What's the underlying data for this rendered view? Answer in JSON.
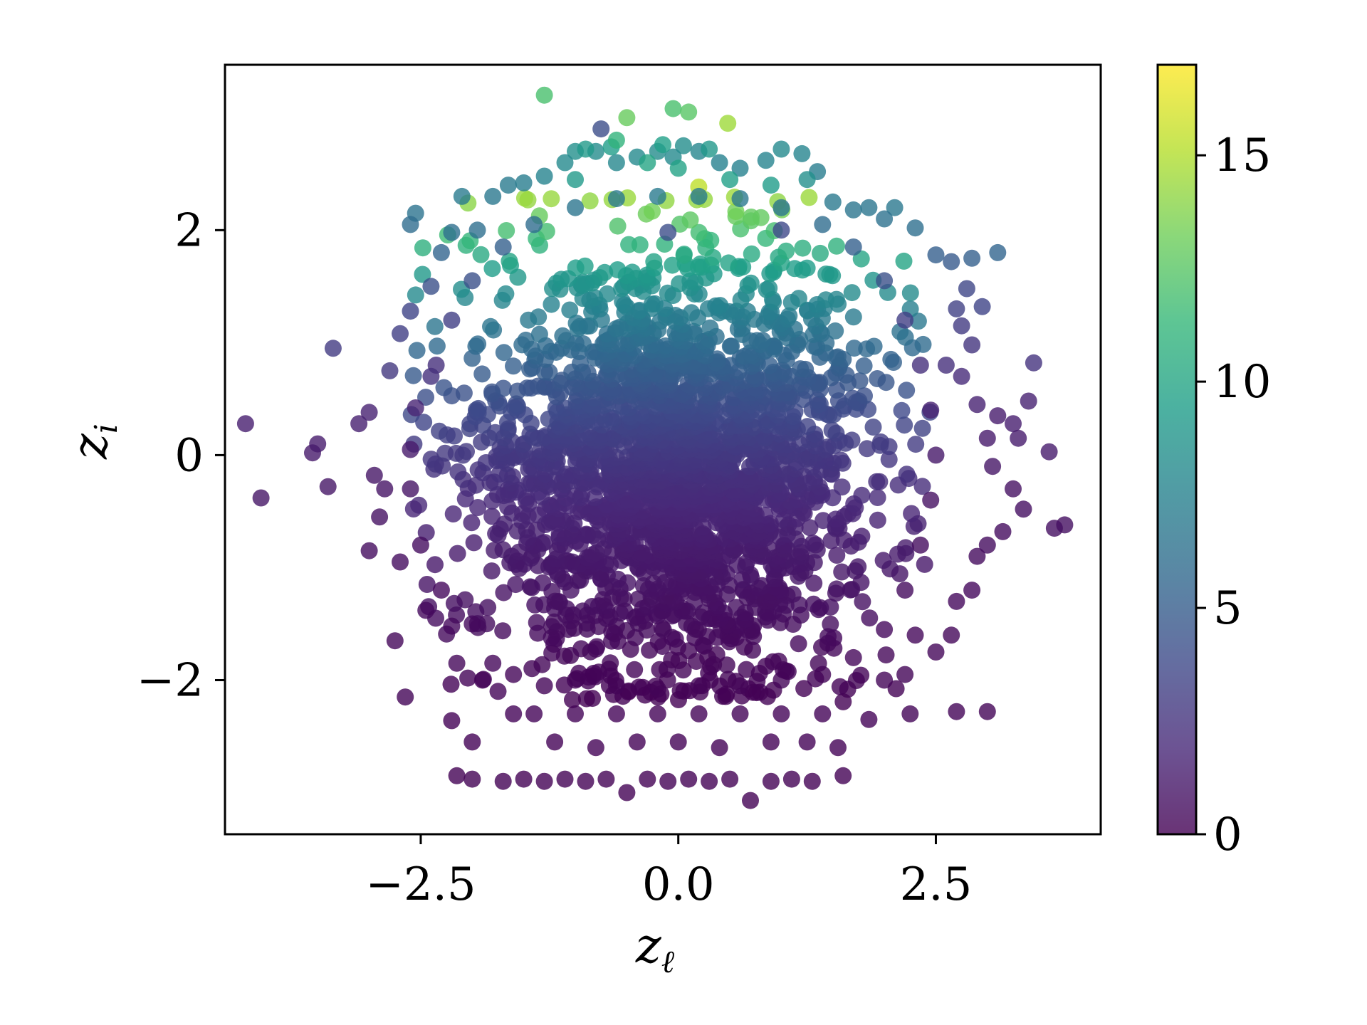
{
  "chart_data": {
    "type": "scatter",
    "title": "",
    "xlabel": "z",
    "xlabel_sub": "ℓ",
    "ylabel": "z",
    "ylabel_sub": "i",
    "xlim": [
      -4.4,
      4.1
    ],
    "ylim": [
      -3.37,
      3.47
    ],
    "xticks": [
      -2.5,
      0.0,
      2.5
    ],
    "xtick_labels": [
      "−2.5",
      "0.0",
      "2.5"
    ],
    "yticks": [
      -2,
      0,
      2
    ],
    "ytick_labels": [
      "−2",
      "0",
      "2"
    ],
    "grid": false,
    "legend": "none",
    "colormap": "viridis",
    "color_range": [
      0,
      17
    ],
    "colorbar_ticks": [
      0,
      5,
      10,
      15
    ],
    "colorbar_tick_labels": [
      "0",
      "5",
      "10",
      "15"
    ],
    "colors": {
      "viridis": [
        "#440154",
        "#482878",
        "#3e4989",
        "#31688e",
        "#26828e",
        "#1f9e89",
        "#35b779",
        "#6ece58",
        "#b5de2b",
        "#fde725"
      ]
    },
    "marker_alpha": 0.8,
    "points": [
      [
        -4.2,
        0.28,
        1.4
      ],
      [
        -3.55,
        0.02,
        1.2
      ],
      [
        -4.05,
        -0.38,
        1.0
      ],
      [
        -3.5,
        0.1,
        1.3
      ],
      [
        -3.4,
        -0.28,
        1.0
      ],
      [
        -3.35,
        0.95,
        3.0
      ],
      [
        -3.1,
        0.28,
        1.5
      ],
      [
        -3.0,
        0.38,
        1.6
      ],
      [
        -2.95,
        -0.18,
        1.0
      ],
      [
        -2.85,
        -0.3,
        0.9
      ],
      [
        -3.0,
        -0.85,
        0.6
      ],
      [
        -2.9,
        -0.55,
        0.8
      ],
      [
        -2.7,
        1.08,
        3.2
      ],
      [
        -2.8,
        0.75,
        2.8
      ],
      [
        -2.6,
        1.28,
        3.5
      ],
      [
        -2.7,
        -0.95,
        0.6
      ],
      [
        -2.75,
        -1.65,
        0.3
      ],
      [
        -2.65,
        -2.15,
        0.2
      ],
      [
        -2.55,
        2.15,
        6.5
      ],
      [
        -2.6,
        2.05,
        6.0
      ],
      [
        -2.4,
        1.5,
        4.2
      ],
      [
        -2.3,
        1.8,
        5.5
      ],
      [
        -2.2,
        1.98,
        6.2
      ],
      [
        -2.1,
        2.3,
        7.0
      ],
      [
        -2.45,
        -1.38,
        0.4
      ],
      [
        -2.2,
        -1.52,
        0.4
      ],
      [
        -2.15,
        -1.85,
        0.3
      ],
      [
        -2.2,
        -2.36,
        0.1
      ],
      [
        -2.15,
        -2.85,
        0.05
      ],
      [
        -2.0,
        -2.88,
        0.05
      ],
      [
        -2.0,
        -2.55,
        0.1
      ],
      [
        -1.7,
        -2.9,
        0.05
      ],
      [
        -1.5,
        -2.88,
        0.05
      ],
      [
        -1.3,
        -2.9,
        0.05
      ],
      [
        -1.1,
        -2.88,
        0.05
      ],
      [
        -0.9,
        -2.9,
        0.05
      ],
      [
        -0.7,
        -2.88,
        0.05
      ],
      [
        -0.5,
        -3.0,
        0.05
      ],
      [
        -0.3,
        -2.88,
        0.05
      ],
      [
        -0.1,
        -2.9,
        0.05
      ],
      [
        0.1,
        -2.88,
        0.05
      ],
      [
        0.3,
        -2.9,
        0.05
      ],
      [
        0.5,
        -2.88,
        0.05
      ],
      [
        0.7,
        -3.07,
        0.05
      ],
      [
        0.9,
        -2.9,
        0.05
      ],
      [
        1.1,
        -2.88,
        0.05
      ],
      [
        1.3,
        -2.9,
        0.05
      ],
      [
        1.6,
        -2.85,
        0.05
      ],
      [
        -1.2,
        -2.55,
        0.1
      ],
      [
        -0.8,
        -2.6,
        0.1
      ],
      [
        -0.4,
        -2.55,
        0.1
      ],
      [
        0.0,
        -2.55,
        0.1
      ],
      [
        0.4,
        -2.6,
        0.1
      ],
      [
        0.9,
        -2.55,
        0.1
      ],
      [
        1.25,
        -2.55,
        0.1
      ],
      [
        1.55,
        -2.6,
        0.1
      ],
      [
        -1.6,
        -2.3,
        0.15
      ],
      [
        -1.4,
        -2.3,
        0.15
      ],
      [
        -1.0,
        -2.3,
        0.15
      ],
      [
        -0.6,
        -2.3,
        0.15
      ],
      [
        -0.2,
        -2.3,
        0.15
      ],
      [
        0.2,
        -2.3,
        0.15
      ],
      [
        0.6,
        -2.3,
        0.15
      ],
      [
        1.0,
        -2.3,
        0.15
      ],
      [
        1.4,
        -2.3,
        0.15
      ],
      [
        1.85,
        -2.35,
        0.15
      ],
      [
        2.25,
        -2.3,
        0.2
      ],
      [
        2.7,
        -2.28,
        0.2
      ],
      [
        3.0,
        -2.28,
        0.2
      ],
      [
        -1.9,
        -2.0,
        0.2
      ],
      [
        -1.75,
        -2.1,
        0.2
      ],
      [
        2.0,
        -2.0,
        0.2
      ],
      [
        2.2,
        -1.95,
        0.2
      ],
      [
        2.5,
        -1.75,
        0.3
      ],
      [
        2.3,
        -1.6,
        0.3
      ],
      [
        2.65,
        -1.6,
        0.3
      ],
      [
        2.7,
        -1.3,
        0.4
      ],
      [
        2.85,
        -1.2,
        0.4
      ],
      [
        2.9,
        -0.9,
        0.5
      ],
      [
        3.0,
        -0.8,
        0.6
      ],
      [
        3.15,
        -0.68,
        0.6
      ],
      [
        3.35,
        -0.48,
        0.7
      ],
      [
        3.25,
        -0.3,
        0.8
      ],
      [
        3.05,
        -0.1,
        1.0
      ],
      [
        3.0,
        0.15,
        1.2
      ],
      [
        3.1,
        0.35,
        1.3
      ],
      [
        3.25,
        0.28,
        1.4
      ],
      [
        3.4,
        0.48,
        1.6
      ],
      [
        3.3,
        0.15,
        1.3
      ],
      [
        3.6,
        0.03,
        1.3
      ],
      [
        3.45,
        0.82,
        2.5
      ],
      [
        3.65,
        -0.65,
        0.7
      ],
      [
        3.75,
        -0.62,
        0.7
      ],
      [
        2.9,
        0.45,
        1.6
      ],
      [
        2.75,
        0.7,
        2.0
      ],
      [
        2.85,
        0.98,
        2.6
      ],
      [
        2.6,
        0.8,
        2.3
      ],
      [
        2.75,
        1.15,
        3.0
      ],
      [
        2.7,
        1.3,
        3.3
      ],
      [
        2.8,
        1.48,
        3.6
      ],
      [
        2.95,
        1.32,
        3.5
      ],
      [
        2.65,
        1.72,
        4.8
      ],
      [
        2.85,
        1.75,
        5.2
      ],
      [
        3.1,
        1.8,
        5.5
      ],
      [
        2.5,
        1.78,
        5.1
      ],
      [
        2.3,
        2.02,
        6.2
      ],
      [
        2.1,
        2.2,
        6.8
      ],
      [
        2.0,
        2.1,
        6.4
      ],
      [
        1.85,
        2.2,
        6.7
      ],
      [
        1.7,
        2.18,
        6.6
      ],
      [
        1.5,
        2.25,
        6.9
      ],
      [
        1.35,
        2.52,
        7.2
      ],
      [
        1.2,
        2.68,
        7.7
      ],
      [
        1.0,
        2.72,
        8.0
      ],
      [
        0.85,
        2.62,
        7.6
      ],
      [
        0.6,
        2.55,
        7.5
      ],
      [
        0.4,
        2.6,
        7.5
      ],
      [
        0.2,
        2.7,
        7.8
      ],
      [
        0.05,
        2.75,
        8.3
      ],
      [
        -0.05,
        2.65,
        8.1
      ],
      [
        -0.2,
        2.7,
        8.2
      ],
      [
        -0.4,
        2.65,
        8.0
      ],
      [
        -0.6,
        2.6,
        7.9
      ],
      [
        -0.8,
        2.7,
        8.2
      ],
      [
        -1.0,
        2.7,
        8.5
      ],
      [
        -1.1,
        2.6,
        8.0
      ],
      [
        -1.3,
        2.48,
        7.6
      ],
      [
        -1.5,
        2.42,
        7.2
      ],
      [
        -1.65,
        2.4,
        7.0
      ],
      [
        -1.8,
        2.3,
        6.8
      ],
      [
        -1.95,
        2.0,
        6.2
      ],
      [
        -0.9,
        2.72,
        9.2
      ],
      [
        -0.65,
        2.74,
        9.4
      ],
      [
        -0.15,
        2.76,
        9.6
      ],
      [
        0.3,
        2.72,
        9.0
      ],
      [
        -0.75,
        2.9,
        4.0
      ],
      [
        -0.5,
        3.0,
        13.0
      ],
      [
        -0.05,
        3.08,
        12.0
      ],
      [
        0.1,
        3.05,
        12.5
      ],
      [
        0.48,
        2.95,
        14.5
      ],
      [
        -1.3,
        3.2,
        12.0
      ],
      [
        -0.6,
        2.8,
        11.0
      ],
      [
        -0.3,
        2.6,
        10.0
      ],
      [
        0.0,
        2.55,
        9.8
      ],
      [
        0.5,
        2.45,
        9.6
      ],
      [
        -1.0,
        2.45,
        9.2
      ],
      [
        0.9,
        2.4,
        9.3
      ],
      [
        1.25,
        2.45,
        8.5
      ],
      [
        -0.1,
        1.98,
        4.0
      ],
      [
        1.0,
        2.0,
        3.8
      ],
      [
        -2.4,
        0.7,
        2.4
      ],
      [
        -2.55,
        0.42,
        1.7
      ],
      [
        -2.6,
        0.05,
        1.2
      ],
      [
        -2.6,
        -0.3,
        0.9
      ],
      [
        -2.5,
        -0.8,
        0.6
      ],
      [
        -2.3,
        -1.2,
        0.4
      ],
      [
        -2.0,
        -1.5,
        0.4
      ],
      [
        -1.8,
        -1.85,
        0.3
      ],
      [
        -1.6,
        -1.95,
        0.2
      ],
      [
        -1.3,
        -2.05,
        0.2
      ],
      [
        -1.0,
        -2.0,
        0.2
      ],
      [
        -0.6,
        -2.05,
        0.2
      ],
      [
        -0.2,
        -2.08,
        0.2
      ],
      [
        0.2,
        -2.05,
        0.2
      ],
      [
        0.6,
        -2.05,
        0.2
      ],
      [
        1.0,
        -2.0,
        0.2
      ],
      [
        1.4,
        -1.95,
        0.2
      ],
      [
        1.7,
        -1.8,
        0.3
      ],
      [
        2.0,
        -1.55,
        0.4
      ],
      [
        2.2,
        -1.2,
        0.5
      ],
      [
        2.35,
        -0.8,
        0.6
      ],
      [
        2.45,
        -0.4,
        0.8
      ],
      [
        2.5,
        0.0,
        1.1
      ],
      [
        2.45,
        0.4,
        1.6
      ],
      [
        2.35,
        0.8,
        2.3
      ],
      [
        2.2,
        1.2,
        3.2
      ],
      [
        2.0,
        1.55,
        4.2
      ],
      [
        1.7,
        1.85,
        5.2
      ],
      [
        1.4,
        2.05,
        6.0
      ],
      [
        1.0,
        2.2,
        6.6
      ],
      [
        0.6,
        2.28,
        6.9
      ],
      [
        0.2,
        2.3,
        7.0
      ],
      [
        -0.2,
        2.3,
        7.0
      ],
      [
        -0.6,
        2.28,
        6.9
      ],
      [
        -1.0,
        2.2,
        6.6
      ],
      [
        -1.4,
        2.05,
        6.0
      ],
      [
        -1.7,
        1.85,
        5.2
      ],
      [
        -2.0,
        1.55,
        4.2
      ],
      [
        -2.2,
        1.2,
        3.2
      ],
      [
        -2.35,
        0.8,
        2.3
      ]
    ],
    "dense_cloud": {
      "center": [
        -0.05,
        -0.1
      ],
      "spread": [
        0.95,
        0.95
      ],
      "count": 2400
    }
  }
}
